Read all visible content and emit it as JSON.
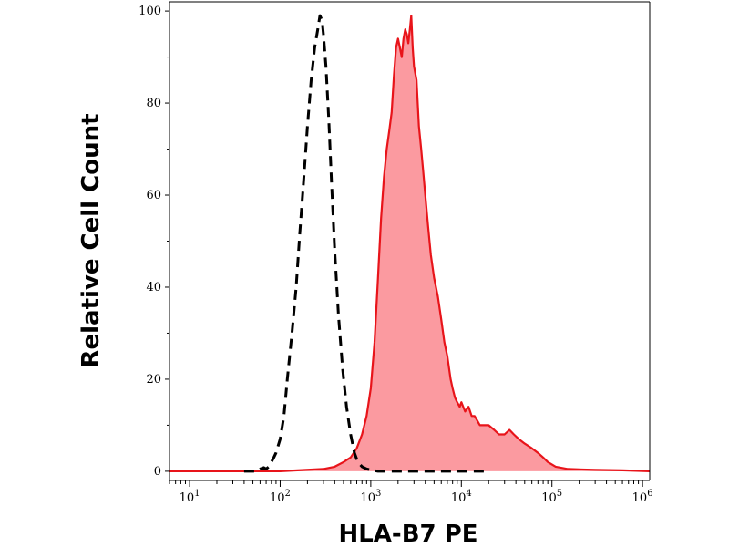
{
  "chart_data": {
    "type": "area",
    "title": "",
    "xlabel": "HLA-B7 PE",
    "ylabel": "Relative Cell Count",
    "xscale": "log",
    "xlim": [
      6,
      1200000
    ],
    "ylim": [
      -2,
      102
    ],
    "grid": false,
    "xticks": [
      {
        "value": 10,
        "base": "10",
        "exp": "1"
      },
      {
        "value": 100,
        "base": "10",
        "exp": "2"
      },
      {
        "value": 1000,
        "base": "10",
        "exp": "3"
      },
      {
        "value": 10000,
        "base": "10",
        "exp": "4"
      },
      {
        "value": 100000,
        "base": "10",
        "exp": "5"
      },
      {
        "value": 1000000,
        "base": "10",
        "exp": "6"
      }
    ],
    "yticks": [
      0,
      20,
      40,
      60,
      80,
      100
    ],
    "series": [
      {
        "style": "dashed",
        "color": "#000000",
        "fill": "none",
        "x": [
          40,
          55,
          60,
          66,
          70,
          75,
          80,
          85,
          90,
          100,
          110,
          120,
          135,
          150,
          165,
          180,
          200,
          220,
          240,
          260,
          275,
          290,
          300,
          320,
          345,
          370,
          400,
          440,
          490,
          540,
          600,
          660,
          720,
          800,
          900,
          1000,
          1200,
          2000,
          5000,
          20000
        ],
        "y": [
          0,
          0,
          0.5,
          0.8,
          0.5,
          1,
          2,
          3,
          4,
          7,
          12,
          20,
          30,
          40,
          52,
          62,
          75,
          85,
          92,
          96,
          99,
          98,
          95,
          88,
          76,
          62,
          48,
          34,
          22,
          14,
          8,
          4,
          2,
          1,
          0.5,
          0.3,
          0,
          0,
          0,
          0
        ]
      },
      {
        "style": "solid",
        "color": "#e8141a",
        "fill": "#fb9aa0",
        "x": [
          6,
          100,
          300,
          400,
          500,
          600,
          700,
          800,
          900,
          1000,
          1100,
          1200,
          1300,
          1400,
          1500,
          1600,
          1700,
          1800,
          1900,
          2000,
          2100,
          2200,
          2300,
          2400,
          2500,
          2600,
          2700,
          2800,
          2900,
          3000,
          3200,
          3400,
          3600,
          3800,
          4000,
          4300,
          4600,
          5000,
          5500,
          6000,
          6500,
          7000,
          7600,
          8000,
          8500,
          9000,
          9600,
          10000,
          11000,
          12000,
          13000,
          14000,
          15000,
          16000,
          18000,
          20000,
          23000,
          26000,
          30000,
          34000,
          38000,
          43000,
          50000,
          60000,
          70000,
          80000,
          90000,
          110000,
          150000,
          300000,
          600000,
          1200000
        ],
        "y": [
          0,
          0,
          0.5,
          1,
          2,
          3,
          5,
          8,
          12,
          18,
          28,
          42,
          55,
          64,
          70,
          74,
          78,
          86,
          92,
          94,
          92,
          90,
          94,
          96,
          95,
          93,
          96,
          99,
          92,
          88,
          85,
          75,
          70,
          65,
          60,
          53,
          47,
          42,
          38,
          33,
          28,
          25,
          20,
          18,
          16,
          15,
          14,
          15,
          13,
          14,
          12,
          12,
          11,
          10,
          10,
          10,
          9,
          8,
          8,
          9,
          8,
          7,
          6,
          5,
          4,
          3,
          2,
          1,
          0.5,
          0.3,
          0.2,
          0
        ]
      }
    ]
  }
}
